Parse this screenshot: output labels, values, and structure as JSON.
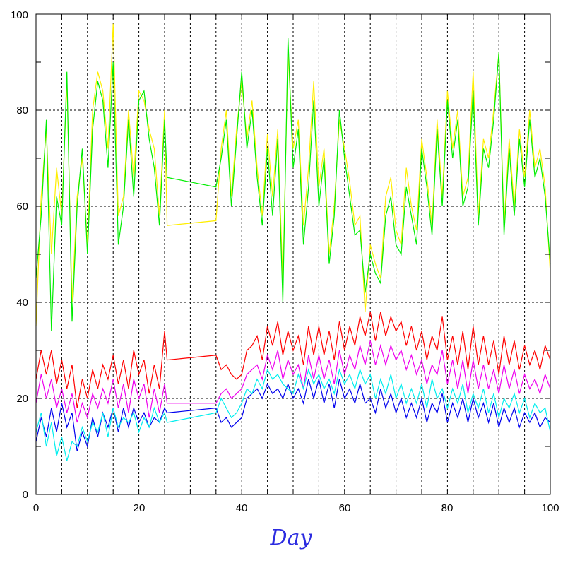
{
  "chart_data": {
    "type": "line",
    "xlabel": "Day",
    "ylabel": "",
    "xlim": [
      0,
      100
    ],
    "ylim": [
      0,
      100
    ],
    "x_ticks": [
      "0",
      "20",
      "40",
      "60",
      "80",
      "100"
    ],
    "y_ticks": [
      "0",
      "20",
      "40",
      "60",
      "80",
      "100"
    ],
    "grid": true,
    "gap": [
      25.5,
      35
    ],
    "colors": {
      "xlabel": "#2b2be0",
      "yellow": "#ffee00",
      "green": "#00ee00",
      "red": "#ff0000",
      "magenta": "#ee00ee",
      "blue": "#0000ee",
      "cyan": "#00eeee"
    },
    "series": [
      {
        "color": "yellow",
        "x": [
          0,
          1,
          2,
          3,
          4,
          5,
          6,
          7,
          8,
          9,
          10,
          11,
          12,
          13,
          14,
          15,
          16,
          17,
          18,
          19,
          20,
          21,
          22,
          23,
          24,
          25,
          25.5,
          35,
          36,
          37,
          38,
          39,
          40,
          41,
          42,
          43,
          44,
          45,
          46,
          47,
          48,
          49,
          50,
          51,
          52,
          53,
          54,
          55,
          56,
          57,
          58,
          59,
          60,
          61,
          62,
          63,
          64,
          65,
          66,
          67,
          68,
          69,
          70,
          71,
          72,
          73,
          74,
          75,
          76,
          77,
          78,
          79,
          80,
          81,
          82,
          83,
          84,
          85,
          86,
          87,
          88,
          89,
          90,
          91,
          92,
          93,
          94,
          95,
          96,
          97,
          98,
          99,
          100
        ],
        "values": [
          35,
          62,
          76,
          50,
          68,
          58,
          86,
          40,
          62,
          70,
          52,
          80,
          88,
          84,
          72,
          98,
          58,
          62,
          80,
          66,
          84,
          82,
          76,
          72,
          58,
          80,
          56,
          57,
          72,
          80,
          62,
          76,
          86,
          74,
          82,
          68,
          58,
          75,
          62,
          76,
          44,
          92,
          72,
          78,
          56,
          68,
          86,
          64,
          72,
          50,
          60,
          78,
          72,
          65,
          56,
          58,
          38,
          52,
          48,
          45,
          62,
          66,
          55,
          52,
          68,
          60,
          55,
          74,
          66,
          56,
          78,
          62,
          84,
          72,
          80,
          62,
          66,
          88,
          58,
          74,
          70,
          80,
          92,
          56,
          74,
          60,
          76,
          66,
          80,
          68,
          72,
          64,
          46
        ]
      },
      {
        "color": "green",
        "x": [
          0,
          1,
          2,
          3,
          4,
          5,
          6,
          7,
          8,
          9,
          10,
          11,
          12,
          13,
          14,
          15,
          16,
          17,
          18,
          19,
          20,
          21,
          22,
          23,
          24,
          25,
          25.5,
          35,
          36,
          37,
          38,
          39,
          40,
          41,
          42,
          43,
          44,
          45,
          46,
          47,
          48,
          49,
          50,
          51,
          52,
          53,
          54,
          55,
          56,
          57,
          58,
          59,
          60,
          61,
          62,
          63,
          64,
          65,
          66,
          67,
          68,
          69,
          70,
          71,
          72,
          73,
          74,
          75,
          76,
          77,
          78,
          79,
          80,
          81,
          82,
          83,
          84,
          85,
          86,
          87,
          88,
          89,
          90,
          91,
          92,
          93,
          94,
          95,
          96,
          97,
          98,
          99,
          100
        ],
        "values": [
          45,
          58,
          78,
          34,
          62,
          56,
          88,
          36,
          60,
          72,
          50,
          76,
          86,
          82,
          68,
          90,
          52,
          60,
          78,
          62,
          82,
          84,
          74,
          68,
          56,
          78,
          66,
          64,
          70,
          78,
          60,
          74,
          88,
          72,
          80,
          66,
          56,
          72,
          58,
          74,
          40,
          95,
          68,
          76,
          52,
          64,
          82,
          60,
          70,
          48,
          58,
          80,
          70,
          62,
          54,
          55,
          42,
          50,
          46,
          44,
          58,
          62,
          52,
          50,
          64,
          58,
          52,
          72,
          64,
          54,
          76,
          60,
          82,
          70,
          78,
          60,
          64,
          84,
          56,
          72,
          68,
          78,
          92,
          54,
          72,
          58,
          74,
          64,
          78,
          66,
          70,
          62,
          48
        ]
      },
      {
        "color": "red",
        "x": [
          0,
          1,
          2,
          3,
          4,
          5,
          6,
          7,
          8,
          9,
          10,
          11,
          12,
          13,
          14,
          15,
          16,
          17,
          18,
          19,
          20,
          21,
          22,
          23,
          24,
          25,
          25.5,
          35,
          36,
          37,
          38,
          39,
          40,
          41,
          42,
          43,
          44,
          45,
          46,
          47,
          48,
          49,
          50,
          51,
          52,
          53,
          54,
          55,
          56,
          57,
          58,
          59,
          60,
          61,
          62,
          63,
          64,
          65,
          66,
          67,
          68,
          69,
          70,
          71,
          72,
          73,
          74,
          75,
          76,
          77,
          78,
          79,
          80,
          81,
          82,
          83,
          84,
          85,
          86,
          87,
          88,
          89,
          90,
          91,
          92,
          93,
          94,
          95,
          96,
          97,
          98,
          99,
          100
        ],
        "values": [
          24,
          30,
          25,
          30,
          23,
          28,
          22,
          27,
          18,
          24,
          20,
          26,
          22,
          27,
          24,
          29,
          23,
          28,
          22,
          30,
          25,
          28,
          21,
          27,
          22,
          34,
          28,
          29,
          26,
          27,
          25,
          24,
          25,
          30,
          31,
          33,
          28,
          35,
          31,
          36,
          29,
          34,
          30,
          33,
          27,
          35,
          29,
          35,
          29,
          34,
          28,
          36,
          30,
          35,
          31,
          37,
          33,
          38,
          32,
          38,
          33,
          37,
          34,
          36,
          31,
          35,
          30,
          34,
          28,
          33,
          30,
          37,
          28,
          33,
          27,
          34,
          26,
          35,
          27,
          33,
          27,
          32,
          25,
          33,
          27,
          32,
          26,
          31,
          27,
          30,
          26,
          31,
          28
        ]
      },
      {
        "color": "magenta",
        "x": [
          0,
          1,
          2,
          3,
          4,
          5,
          6,
          7,
          8,
          9,
          10,
          11,
          12,
          13,
          14,
          15,
          16,
          17,
          18,
          19,
          20,
          21,
          22,
          23,
          24,
          25,
          25.5,
          35,
          36,
          37,
          38,
          39,
          40,
          41,
          42,
          43,
          44,
          45,
          46,
          47,
          48,
          49,
          50,
          51,
          52,
          53,
          54,
          55,
          56,
          57,
          58,
          59,
          60,
          61,
          62,
          63,
          64,
          65,
          66,
          67,
          68,
          69,
          70,
          71,
          72,
          73,
          74,
          75,
          76,
          77,
          78,
          79,
          80,
          81,
          82,
          83,
          84,
          85,
          86,
          87,
          88,
          89,
          90,
          91,
          92,
          93,
          94,
          95,
          96,
          97,
          98,
          99,
          100
        ],
        "values": [
          19,
          25,
          20,
          24,
          18,
          22,
          17,
          21,
          15,
          19,
          16,
          21,
          18,
          22,
          19,
          24,
          18,
          23,
          17,
          24,
          20,
          23,
          16,
          22,
          17,
          23,
          19,
          19,
          21,
          22,
          20,
          21,
          22,
          25,
          26,
          27,
          24,
          29,
          26,
          30,
          24,
          28,
          25,
          27,
          22,
          29,
          24,
          29,
          24,
          28,
          23,
          30,
          25,
          29,
          26,
          31,
          27,
          32,
          27,
          31,
          27,
          31,
          28,
          30,
          26,
          29,
          25,
          28,
          23,
          27,
          25,
          30,
          23,
          28,
          22,
          28,
          21,
          28,
          22,
          27,
          22,
          26,
          21,
          27,
          22,
          26,
          21,
          25,
          22,
          24,
          21,
          25,
          22
        ]
      },
      {
        "color": "blue",
        "x": [
          0,
          1,
          2,
          3,
          4,
          5,
          6,
          7,
          8,
          9,
          10,
          11,
          12,
          13,
          14,
          15,
          16,
          17,
          18,
          19,
          20,
          21,
          22,
          23,
          24,
          25,
          25.5,
          35,
          36,
          37,
          38,
          39,
          40,
          41,
          42,
          43,
          44,
          45,
          46,
          47,
          48,
          49,
          50,
          51,
          52,
          53,
          54,
          55,
          56,
          57,
          58,
          59,
          60,
          61,
          62,
          63,
          64,
          65,
          66,
          67,
          68,
          69,
          70,
          71,
          72,
          73,
          74,
          75,
          76,
          77,
          78,
          79,
          80,
          81,
          82,
          83,
          84,
          85,
          86,
          87,
          88,
          89,
          90,
          91,
          92,
          93,
          94,
          95,
          96,
          97,
          98,
          99,
          100
        ],
        "values": [
          11,
          16,
          12,
          18,
          13,
          19,
          14,
          17,
          9,
          13,
          10,
          16,
          12,
          17,
          14,
          18,
          13,
          18,
          14,
          18,
          15,
          17,
          14,
          16,
          15,
          18,
          17,
          18,
          15,
          16,
          14,
          15,
          16,
          20,
          21,
          22,
          20,
          23,
          21,
          22,
          20,
          23,
          20,
          22,
          19,
          24,
          20,
          24,
          19,
          23,
          18,
          24,
          20,
          22,
          19,
          23,
          19,
          20,
          17,
          22,
          18,
          21,
          17,
          20,
          16,
          19,
          16,
          20,
          15,
          19,
          17,
          21,
          15,
          19,
          16,
          20,
          15,
          20,
          16,
          19,
          15,
          19,
          14,
          18,
          15,
          18,
          14,
          17,
          15,
          17,
          14,
          16,
          15
        ]
      },
      {
        "color": "cyan",
        "x": [
          0,
          1,
          2,
          3,
          4,
          5,
          6,
          7,
          8,
          9,
          10,
          11,
          12,
          13,
          14,
          15,
          16,
          17,
          18,
          19,
          20,
          21,
          22,
          23,
          24,
          25,
          25.5,
          35,
          36,
          37,
          38,
          39,
          40,
          41,
          42,
          43,
          44,
          45,
          46,
          47,
          48,
          49,
          50,
          51,
          52,
          53,
          54,
          55,
          56,
          57,
          58,
          59,
          60,
          61,
          62,
          63,
          64,
          65,
          66,
          67,
          68,
          69,
          70,
          71,
          72,
          73,
          74,
          75,
          76,
          77,
          78,
          79,
          80,
          81,
          82,
          83,
          84,
          85,
          86,
          87,
          88,
          89,
          90,
          91,
          92,
          93,
          94,
          95,
          96,
          97,
          98,
          99,
          100
        ],
        "values": [
          13,
          17,
          10,
          15,
          8,
          12,
          7,
          11,
          10,
          14,
          11,
          15,
          13,
          17,
          12,
          18,
          14,
          16,
          15,
          17,
          13,
          16,
          14,
          18,
          15,
          17,
          15,
          17,
          20,
          18,
          16,
          17,
          19,
          22,
          21,
          24,
          22,
          26,
          24,
          25,
          23,
          22,
          21,
          25,
          22,
          26,
          23,
          25,
          22,
          24,
          21,
          26,
          23,
          25,
          22,
          26,
          23,
          25,
          20,
          24,
          21,
          25,
          20,
          23,
          19,
          22,
          19,
          23,
          18,
          24,
          20,
          22,
          18,
          22,
          19,
          23,
          17,
          21,
          18,
          22,
          17,
          21,
          16,
          20,
          18,
          21,
          17,
          20,
          16,
          19,
          17,
          18,
          13
        ]
      }
    ]
  }
}
